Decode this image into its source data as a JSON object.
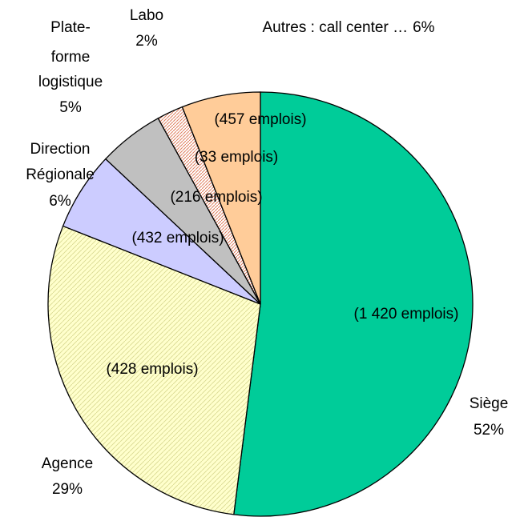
{
  "chart_data": {
    "type": "pie",
    "categories": [
      "Siège",
      "Agence",
      "Direction Régionale",
      "Plate-forme logistique",
      "Labo",
      "Autres : call center …"
    ],
    "values": [
      52,
      29,
      6,
      5,
      2,
      6
    ],
    "value_labels": [
      "52%",
      "29%",
      "6%",
      "5%",
      "2%",
      "6%"
    ],
    "slice_labels": [
      "(1 420 emplois)",
      "(428 emplois)",
      "(432 emplois)",
      "(216 emplois)",
      "(33 emplois)",
      "(457 emplois)"
    ],
    "colors": [
      "#00cc99",
      "#ffffcc",
      "#ccccff",
      "#c0c0c0",
      "#ffcc99",
      "#ffcc99"
    ]
  }
}
